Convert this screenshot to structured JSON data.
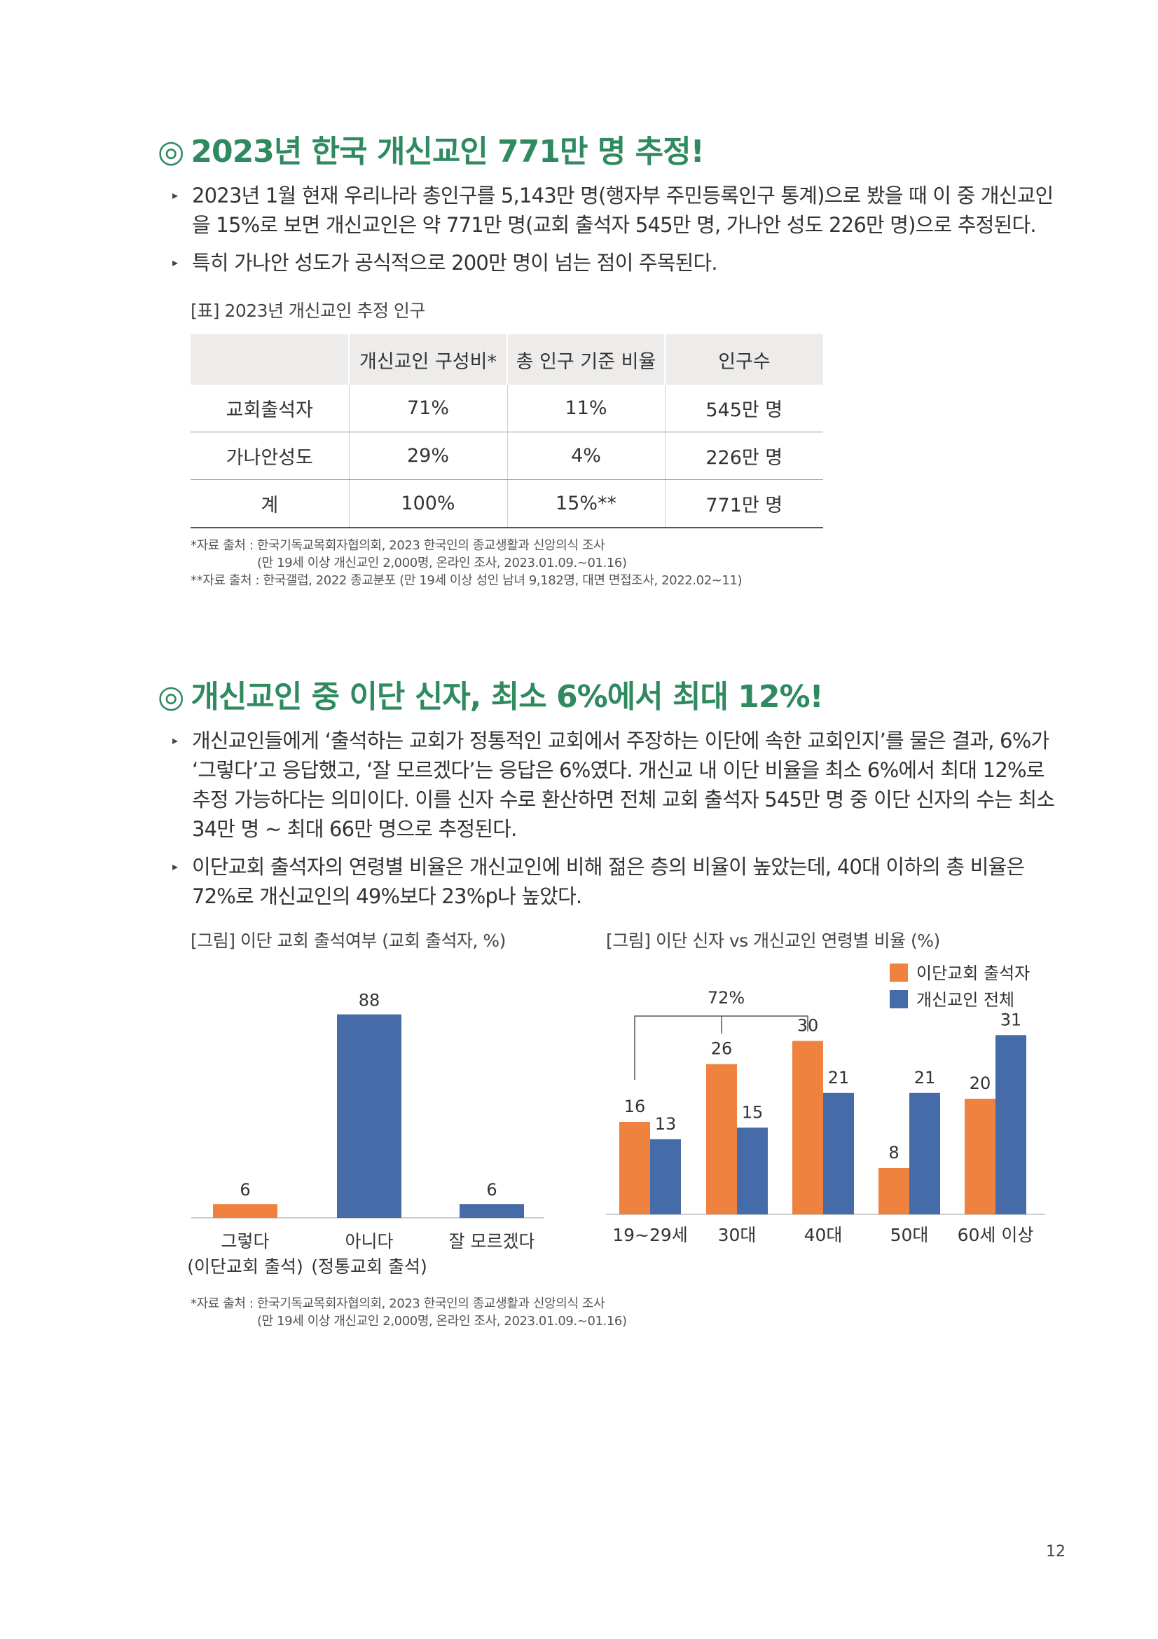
{
  "section1": {
    "mark": "◎",
    "title": "2023년 한국 개신교인 771만 명 추정!",
    "bullets": [
      "2023년 1월 현재 우리나라 총인구를 5,143만 명(행자부 주민등록인구 통계)으로 봤을 때 이 중 개신교인을 15%로 보면 개신교인은 약 771만 명(교회 출석자 545만 명, 가나안 성도 226만 명)으로 추정된다.",
      "특히 가나안 성도가 공식적으로 200만 명이 넘는 점이 주목된다."
    ],
    "table_caption": "[표] 2023년 개신교인 추정 인구",
    "table": {
      "headers": [
        "",
        "개신교인 구성비*",
        "총 인구 기준 비율",
        "인구수"
      ],
      "rows": [
        [
          "교회출석자",
          "71%",
          "11%",
          "545만 명"
        ],
        [
          "가나안성도",
          "29%",
          "4%",
          "226만 명"
        ],
        [
          "계",
          "100%",
          "15%**",
          "771만 명"
        ]
      ]
    },
    "sources": [
      "*자료 출처 : 한국기독교목회자협의회, 2023 한국인의 종교생활과 신앙의식 조사",
      "(만 19세 이상 개신교인 2,000명, 온라인 조사, 2023.01.09.~01.16)",
      "**자료 출처 : 한국갤럽, 2022 종교분포 (만 19세 이상 성인 남녀 9,182명, 대면 면접조사, 2022.02~11)"
    ]
  },
  "section2": {
    "mark": "◎",
    "title": "개신교인 중 이단 신자, 최소 6%에서 최대 12%!",
    "bullets": [
      "개신교인들에게 ‘출석하는 교회가 정통적인 교회에서 주장하는 이단에 속한 교회인지’를 물은 결과, 6%가 ‘그렇다’고 응답했고, ‘잘 모르겠다’는 응답은 6%였다. 개신교 내 이단 비율을 최소 6%에서 최대 12%로 추정 가능하다는 의미이다. 이를 신자 수로 환산하면 전체 교회 출석자 545만 명 중 이단 신자의 수는 최소 34만 명 ~ 최대 66만 명으로 추정된다.",
      "이단교회 출석자의 연령별 비율은 개신교인에 비해 젊은 층의 비율이 높았는데, 40대 이하의 총 비율은 72%로 개신교인의 49%보다 23%p나 높았다."
    ],
    "sources": [
      "*자료 출처 : 한국기독교목회자협의회, 2023 한국인의 종교생활과 신앙의식 조사",
      "(만 19세 이상 개신교인 2,000명, 온라인 조사, 2023.01.09.~01.16)"
    ]
  },
  "chart_data": [
    {
      "type": "bar",
      "title": "[그림] 이단 교회 출석여부 (교회 출석자, %)",
      "categories": [
        "그렇다\n(이단교회 출석)",
        "아니다\n(정통교회 출석)",
        "잘 모르겠다"
      ],
      "values": [
        6,
        88,
        6
      ],
      "colors": [
        "#f0823f",
        "#456ca8",
        "#456ca8"
      ],
      "ylim": [
        0,
        100
      ],
      "grid": false,
      "xlabel": "",
      "ylabel": ""
    },
    {
      "type": "bar",
      "title": "[그림] 이단 신자 vs 개신교인 연령별 비율 (%)",
      "categories": [
        "19~29세",
        "30대",
        "40대",
        "50대",
        "60세 이상"
      ],
      "series": [
        {
          "name": "이단교회 출석자",
          "color": "#f0823f",
          "values": [
            16,
            26,
            30,
            8,
            20
          ]
        },
        {
          "name": "개신교인 전체",
          "color": "#456ca8",
          "values": [
            13,
            15,
            21,
            21,
            31
          ]
        }
      ],
      "annotation": "72%",
      "legend": "top-right",
      "ylim": [
        0,
        40
      ],
      "grid": false,
      "xlabel": "",
      "ylabel": ""
    }
  ],
  "page_number": "12"
}
